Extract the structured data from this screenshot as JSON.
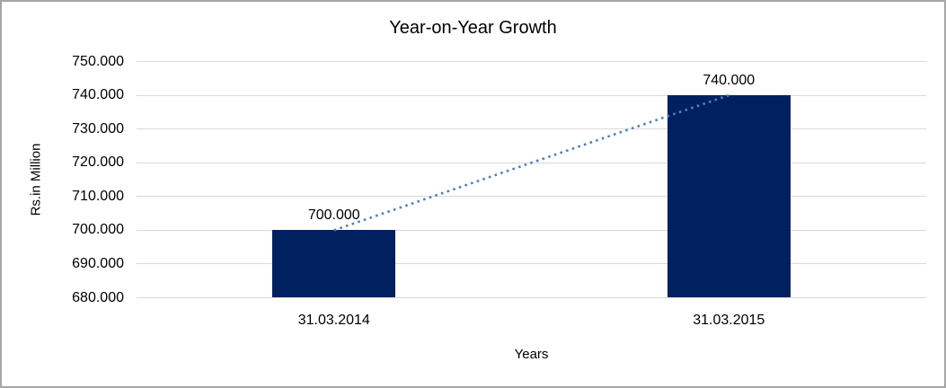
{
  "chart_data": {
    "type": "bar",
    "title": "Year-on-Year Growth",
    "xlabel": "Years",
    "ylabel": "Rs.in Million",
    "categories": [
      "31.03.2014",
      "31.03.2015"
    ],
    "values": [
      700000,
      740000
    ],
    "data_labels": [
      "700.000",
      "740.000"
    ],
    "ytick_labels": [
      "680.000",
      "690.000",
      "700.000",
      "710.000",
      "720.000",
      "730.000",
      "740.000",
      "750.000"
    ],
    "ylim": [
      680000,
      750000
    ],
    "ytick_step": 10000,
    "grid": true,
    "legend_position": "none",
    "bar_color": "#002060",
    "trendline": {
      "type": "linear",
      "style": "dotted",
      "color": "#4F81BD"
    },
    "gridline_color": "#D9D9D9",
    "text_color": "#000000",
    "frame_border_color": "#A6A6A6"
  }
}
